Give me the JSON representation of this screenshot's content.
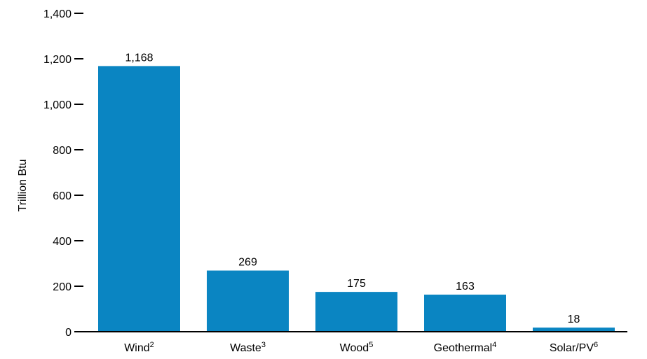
{
  "colors": {
    "bar": "#0a85c2",
    "axis": "#000000"
  },
  "chart_data": {
    "type": "bar",
    "title": "",
    "xlabel": "",
    "ylabel": "Trillion Btu",
    "ylim": [
      0,
      1400
    ],
    "yticks": [
      0,
      200,
      400,
      600,
      800,
      1000,
      1200,
      1400
    ],
    "ytick_labels": [
      "0",
      "200",
      "400",
      "600",
      "800",
      "1,000",
      "1,200",
      "1,400"
    ],
    "categories": [
      "Wind",
      "Waste",
      "Wood",
      "Geothermal",
      "Solar/PV"
    ],
    "category_footnotes": [
      "2",
      "3",
      "5",
      "4",
      "6"
    ],
    "values": [
      1168,
      269,
      175,
      163,
      18
    ],
    "value_labels": [
      "1,168",
      "269",
      "175",
      "163",
      "18"
    ],
    "grid": false,
    "legend": "none"
  }
}
